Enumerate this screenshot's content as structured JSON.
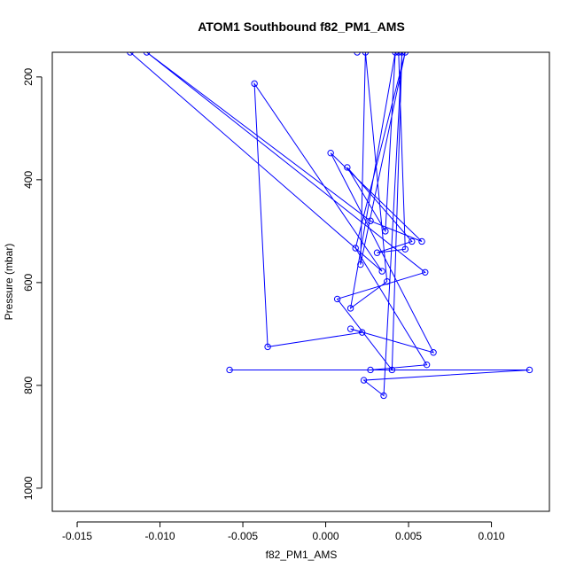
{
  "chart_data": {
    "type": "line",
    "title": "ATOM1 Southbound f82_PM1_AMS",
    "xlabel": "f82_PM1_AMS",
    "ylabel": "Pressure (mbar)",
    "xlim": [
      -0.0165,
      0.0135
    ],
    "ylim": [
      1045,
      152
    ],
    "y_reversed": true,
    "x_ticks": [
      -0.015,
      -0.01,
      -0.005,
      0.0,
      0.005,
      0.01
    ],
    "x_tick_labels": [
      "-0.015",
      "-0.010",
      "-0.005",
      "0.000",
      "0.005",
      "0.010"
    ],
    "y_ticks": [
      200,
      400,
      600,
      800,
      1000
    ],
    "y_tick_labels": [
      "200",
      "400",
      "600",
      "800",
      "1000"
    ],
    "series": [
      {
        "color": "#0000ff",
        "marker": "open-circle",
        "x": [
          -0.0118,
          0.0034,
          -0.0043,
          -0.0035,
          0.0022,
          0.0015,
          0.0065,
          0.0003,
          0.0058,
          0.0027,
          -0.0108,
          0.006,
          0.0007,
          0.004,
          0.0046,
          0.0035,
          0.0023,
          0.0123,
          -0.0058,
          0.0027,
          0.0061,
          0.0018,
          0.0048,
          0.0021,
          0.0024,
          0.0037,
          0.0015,
          0.0042,
          0.0036,
          0.0013,
          0.0052,
          0.0031,
          0.0048,
          0.0044,
          0.0019
        ],
        "y": [
          152,
          578,
          213,
          725,
          697,
          690,
          736,
          348,
          520,
          480,
          152,
          580,
          632,
          770,
          152,
          820,
          790,
          770,
          770,
          770,
          760,
          533,
          152,
          565,
          152,
          598,
          650,
          152,
          500,
          376,
          520,
          542,
          535,
          152,
          152
        ]
      }
    ]
  }
}
